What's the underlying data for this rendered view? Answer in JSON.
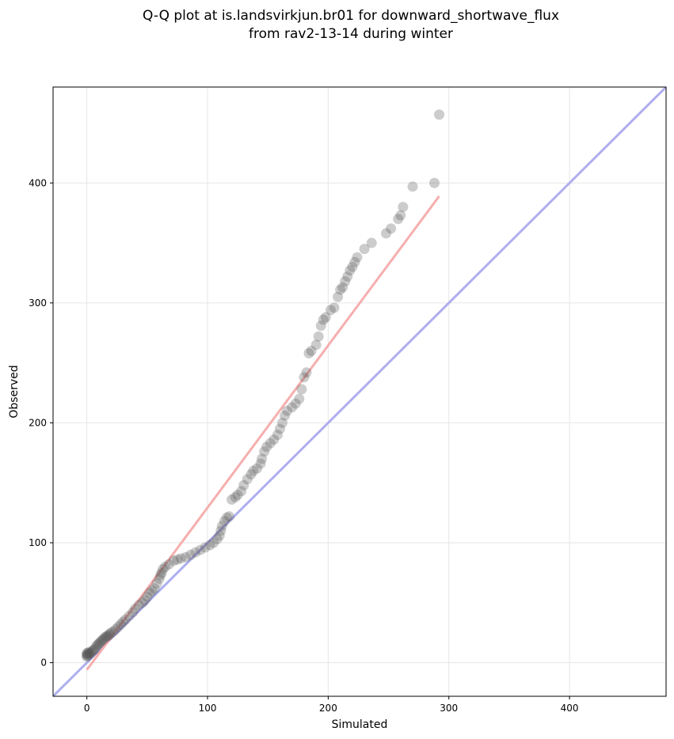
{
  "chart_data": {
    "type": "scatter",
    "title_lines": [
      "Q-Q plot at is.landsvirkjun.br01 for downward_shortwave_flux",
      "from rav2-13-14 during winter"
    ],
    "xlabel": "Simulated",
    "ylabel": "Observed",
    "xlim": [
      -28,
      480
    ],
    "ylim": [
      -28,
      480
    ],
    "xticks": [
      0,
      100,
      200,
      300,
      400
    ],
    "yticks": [
      0,
      100,
      200,
      300,
      400
    ],
    "grid": true,
    "reference_line": {
      "label": "1:1",
      "color": "#aaaaee",
      "from": [
        -28,
        -28
      ],
      "to": [
        480,
        480
      ]
    },
    "fit_line": {
      "color": "#f5aaaa",
      "from": [
        0,
        -6
      ],
      "to": [
        292,
        389
      ]
    },
    "marker_color": "#555555",
    "points": [
      [
        0,
        5
      ],
      [
        0,
        6
      ],
      [
        0,
        7
      ],
      [
        0,
        8
      ],
      [
        1,
        6
      ],
      [
        1,
        8
      ],
      [
        2,
        7
      ],
      [
        2,
        9
      ],
      [
        3,
        8
      ],
      [
        4,
        9
      ],
      [
        5,
        10
      ],
      [
        6,
        11
      ],
      [
        7,
        12
      ],
      [
        8,
        14
      ],
      [
        9,
        15
      ],
      [
        10,
        16
      ],
      [
        11,
        17
      ],
      [
        12,
        18
      ],
      [
        13,
        19
      ],
      [
        14,
        20
      ],
      [
        15,
        21
      ],
      [
        16,
        22
      ],
      [
        17,
        22
      ],
      [
        18,
        23
      ],
      [
        19,
        24
      ],
      [
        20,
        25
      ],
      [
        22,
        26
      ],
      [
        24,
        28
      ],
      [
        26,
        30
      ],
      [
        28,
        32
      ],
      [
        30,
        34
      ],
      [
        32,
        36
      ],
      [
        35,
        39
      ],
      [
        38,
        42
      ],
      [
        40,
        45
      ],
      [
        43,
        48
      ],
      [
        46,
        50
      ],
      [
        48,
        52
      ],
      [
        50,
        55
      ],
      [
        52,
        58
      ],
      [
        54,
        60
      ],
      [
        56,
        62
      ],
      [
        58,
        66
      ],
      [
        60,
        70
      ],
      [
        61,
        73
      ],
      [
        62,
        75
      ],
      [
        63,
        78
      ],
      [
        65,
        80
      ],
      [
        68,
        82
      ],
      [
        72,
        85
      ],
      [
        75,
        86
      ],
      [
        78,
        87
      ],
      [
        82,
        88
      ],
      [
        86,
        90
      ],
      [
        90,
        92
      ],
      [
        94,
        94
      ],
      [
        98,
        96
      ],
      [
        102,
        98
      ],
      [
        105,
        100
      ],
      [
        108,
        103
      ],
      [
        110,
        106
      ],
      [
        111,
        110
      ],
      [
        112,
        114
      ],
      [
        114,
        118
      ],
      [
        116,
        121
      ],
      [
        118,
        122
      ],
      [
        120,
        136
      ],
      [
        123,
        138
      ],
      [
        125,
        140
      ],
      [
        128,
        143
      ],
      [
        130,
        148
      ],
      [
        133,
        153
      ],
      [
        136,
        157
      ],
      [
        138,
        160
      ],
      [
        141,
        162
      ],
      [
        144,
        166
      ],
      [
        145,
        170
      ],
      [
        147,
        176
      ],
      [
        149,
        180
      ],
      [
        152,
        183
      ],
      [
        155,
        186
      ],
      [
        158,
        190
      ],
      [
        160,
        195
      ],
      [
        162,
        200
      ],
      [
        164,
        206
      ],
      [
        166,
        210
      ],
      [
        170,
        213
      ],
      [
        173,
        216
      ],
      [
        176,
        220
      ],
      [
        178,
        228
      ],
      [
        180,
        238
      ],
      [
        182,
        242
      ],
      [
        184,
        258
      ],
      [
        186,
        260
      ],
      [
        190,
        265
      ],
      [
        192,
        272
      ],
      [
        194,
        281
      ],
      [
        196,
        286
      ],
      [
        198,
        288
      ],
      [
        202,
        294
      ],
      [
        205,
        296
      ],
      [
        208,
        305
      ],
      [
        210,
        311
      ],
      [
        212,
        313
      ],
      [
        214,
        318
      ],
      [
        216,
        322
      ],
      [
        218,
        327
      ],
      [
        220,
        330
      ],
      [
        222,
        334
      ],
      [
        224,
        338
      ],
      [
        230,
        345
      ],
      [
        236,
        350
      ],
      [
        248,
        358
      ],
      [
        252,
        362
      ],
      [
        258,
        370
      ],
      [
        260,
        373
      ],
      [
        262,
        380
      ],
      [
        270,
        397
      ],
      [
        288,
        400
      ],
      [
        292,
        457
      ]
    ]
  }
}
